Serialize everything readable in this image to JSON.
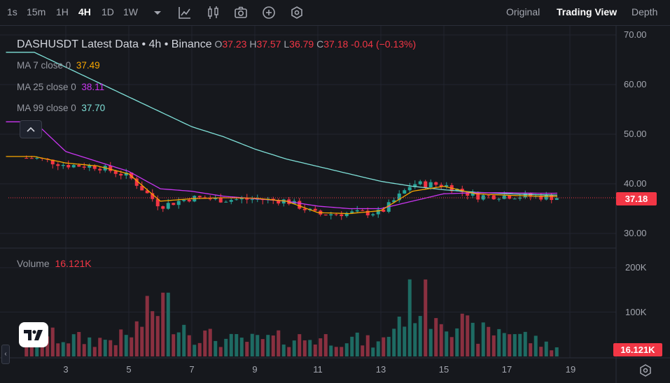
{
  "toolbar": {
    "intervals": [
      {
        "label": "1s",
        "active": false
      },
      {
        "label": "15m",
        "active": false
      },
      {
        "label": "1H",
        "active": false
      },
      {
        "label": "4H",
        "active": true
      },
      {
        "label": "1D",
        "active": false
      },
      {
        "label": "1W",
        "active": false
      }
    ],
    "icons": [
      "chevron-down-icon",
      "line-chart-icon",
      "candles-icon",
      "camera-icon",
      "plus-circle-icon",
      "gear-hex-icon"
    ],
    "views": [
      {
        "label": "Original",
        "active": false
      },
      {
        "label": "Trading View",
        "active": true
      },
      {
        "label": "Depth",
        "active": false
      }
    ]
  },
  "legend": {
    "symbol": "DASHUSDT Latest Data • 4h • Binance",
    "o_label": "O",
    "o": "37.23",
    "h_label": "H",
    "h": "37.57",
    "l_label": "L",
    "l": "36.79",
    "c_label": "C",
    "c": "37.18",
    "change": "-0.04 (−0.13%)"
  },
  "ma": [
    {
      "label": "MA 7 close 0",
      "value": "37.49",
      "color": "#f7a600"
    },
    {
      "label": "MA 25 close 0",
      "value": "38.11",
      "color": "#c935f0"
    },
    {
      "label": "MA 99 close 0",
      "value": "37.70",
      "color": "#7fe0d8"
    }
  ],
  "price_axis": [
    "70.00",
    "60.00",
    "50.00",
    "40.00",
    "30.00"
  ],
  "volume_axis": [
    "200K",
    "100K"
  ],
  "date_axis": [
    "3",
    "5",
    "7",
    "9",
    "11",
    "13",
    "15",
    "17",
    "19"
  ],
  "last_price": "37.18",
  "volume": {
    "label": "Volume",
    "value": "16.121K",
    "tag": "16.121K"
  },
  "colors": {
    "up": "#26a69a",
    "down": "#f23645",
    "ma7": "#f7a600",
    "ma25": "#c935f0",
    "ma99": "#7fe0d8"
  },
  "chart_data": {
    "type": "candlestick",
    "symbol": "DASHUSDT",
    "interval": "4h",
    "x": [
      "2",
      "3",
      "4",
      "5",
      "6",
      "7",
      "8",
      "9",
      "10",
      "11",
      "12",
      "13",
      "14",
      "15",
      "16",
      "17",
      "18",
      "19"
    ],
    "close": [
      45.2,
      43.8,
      43.5,
      41.5,
      35.5,
      37.2,
      36.8,
      36.9,
      36.6,
      33.8,
      34.1,
      34.2,
      40.0,
      39.8,
      37.5,
      37.6,
      37.4,
      37.18
    ],
    "ma7": [
      45.5,
      44.2,
      43.6,
      42.0,
      36.5,
      37.0,
      37.2,
      37.1,
      36.5,
      34.2,
      34.0,
      34.6,
      38.5,
      39.5,
      38.0,
      37.7,
      37.5,
      37.49
    ],
    "ma25": [
      52.5,
      46.5,
      44.5,
      42.5,
      39.0,
      38.5,
      37.5,
      37.0,
      36.5,
      35.5,
      35.0,
      35.0,
      36.5,
      38.0,
      38.2,
      38.2,
      38.1,
      38.11
    ],
    "ma99": [
      66.5,
      63.5,
      60.5,
      57.5,
      54.5,
      51.5,
      49.5,
      47.0,
      45.0,
      43.5,
      42.0,
      40.5,
      39.5,
      38.8,
      38.3,
      38.0,
      37.8,
      37.7
    ],
    "volume_k": [
      55,
      45,
      40,
      48,
      140,
      60,
      40,
      40,
      45,
      45,
      45,
      30,
      145,
      110,
      55,
      70,
      35,
      16.121
    ],
    "ylim": [
      27,
      72
    ],
    "volume_ylim": [
      0,
      220
    ]
  }
}
